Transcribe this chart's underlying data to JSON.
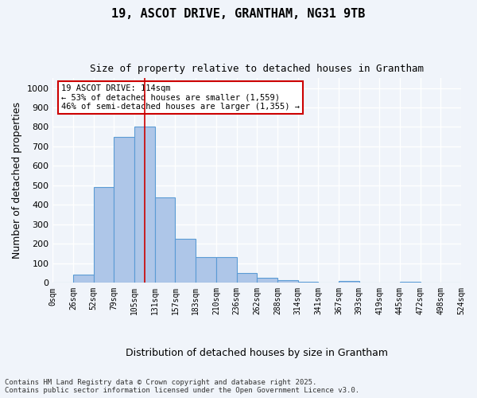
{
  "title_line1": "19, ASCOT DRIVE, GRANTHAM, NG31 9TB",
  "title_line2": "Size of property relative to detached houses in Grantham",
  "xlabel": "Distribution of detached houses by size in Grantham",
  "ylabel": "Number of detached properties",
  "bar_values": [
    0,
    40,
    490,
    750,
    800,
    440,
    225,
    130,
    130,
    50,
    27,
    14,
    5,
    0,
    8,
    0,
    0,
    5,
    0,
    0
  ],
  "bin_labels": [
    "0sqm",
    "26sqm",
    "52sqm",
    "79sqm",
    "105sqm",
    "131sqm",
    "157sqm",
    "183sqm",
    "210sqm",
    "236sqm",
    "262sqm",
    "288sqm",
    "314sqm",
    "341sqm",
    "367sqm",
    "393sqm",
    "419sqm",
    "445sqm",
    "472sqm",
    "498sqm",
    "524sqm"
  ],
  "bar_color": "#aec6e8",
  "bar_edge_color": "#5b9bd5",
  "vline_x": 4,
  "annotation_text": "19 ASCOT DRIVE: 114sqm\n← 53% of detached houses are smaller (1,559)\n46% of semi-detached houses are larger (1,355) →",
  "annotation_box_color": "#ffffff",
  "annotation_box_edge_color": "#cc0000",
  "ylim": [
    0,
    1050
  ],
  "yticks": [
    0,
    100,
    200,
    300,
    400,
    500,
    600,
    700,
    800,
    900,
    1000
  ],
  "background_color": "#f0f4fa",
  "grid_color": "#ffffff",
  "footer_line1": "Contains HM Land Registry data © Crown copyright and database right 2025.",
  "footer_line2": "Contains public sector information licensed under the Open Government Licence v3.0."
}
